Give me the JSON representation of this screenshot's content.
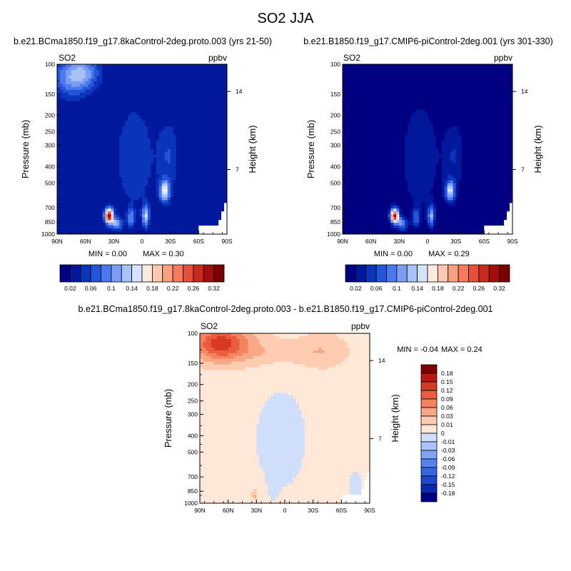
{
  "title": "SO2 JJA",
  "colors": {
    "abs_levels": [
      "#000080",
      "#00189c",
      "#0a35bb",
      "#2354d9",
      "#4a78ee",
      "#7b9df5",
      "#a8c2f8",
      "#d4e5fb",
      "#ffe9df",
      "#fdc8b1",
      "#f9a282",
      "#f47c5d",
      "#e5503b",
      "#c92a1e",
      "#a30e0b",
      "#7a0000"
    ],
    "diff_levels": [
      "#000080",
      "#0a29b0",
      "#1f45d4",
      "#3566e6",
      "#5483ef",
      "#7ea6f5",
      "#a9c4f8",
      "#cfdff9",
      "#ffe8d8",
      "#fdccb1",
      "#f9a886",
      "#f4845f",
      "#ea5d3e",
      "#d63a22",
      "#b31a10",
      "#7f0000"
    ],
    "missing": "#ffffff"
  },
  "chart_data": [
    {
      "type": "heatmap",
      "title": "b.e21.BCma1850.f19_g17.8kaControl-2deg.proto.003 (yrs 21-50)",
      "left_label": "SO2",
      "right_label": "ppbv",
      "ylabel": "Pressure (mb)",
      "ylabel_right": "Height (km)",
      "x_ticks": [
        "90N",
        "60N",
        "30N",
        "0",
        "30S",
        "60S",
        "90S"
      ],
      "y_ticks": [
        "100",
        "150",
        "200",
        "250",
        "300",
        "400",
        "500",
        "700",
        "850",
        "1000"
      ],
      "y_ticks_right": [
        "14",
        "7"
      ],
      "xlim": [
        90,
        -90
      ],
      "ylim_mb": [
        1000,
        100
      ],
      "stats": {
        "min_label": "MIN = ",
        "min": "0.00",
        "max_label": "MAX = ",
        "max": "0.30"
      },
      "colorbar": {
        "orientation": "horizontal",
        "labels": [
          "0.02",
          "0.06",
          "0.1",
          "0.14",
          "0.18",
          "0.22",
          "0.26",
          "0.32"
        ]
      },
      "field": {
        "background": 1,
        "blobs": [
          {
            "lat": 75,
            "p": 120,
            "lev": 4,
            "sx": 14,
            "sy": 0.18
          },
          {
            "lat": 60,
            "p": 110,
            "lev": 3,
            "sx": 12,
            "sy": 0.16
          },
          {
            "lat": 35,
            "p": 780,
            "lev": 14,
            "sx": 3.2,
            "sy": 0.07
          },
          {
            "lat": 27,
            "p": 870,
            "lev": 5,
            "sx": 4,
            "sy": 0.06
          },
          {
            "lat": 12,
            "p": 800,
            "lev": 4,
            "sx": 2.5,
            "sy": 0.08
          },
          {
            "lat": -4,
            "p": 780,
            "lev": 6,
            "sx": 2.5,
            "sy": 0.1
          },
          {
            "lat": -24,
            "p": 560,
            "lev": 7,
            "sx": 3.5,
            "sy": 0.1
          },
          {
            "lat": -28,
            "p": 350,
            "lev": 2,
            "sx": 8,
            "sy": 0.35
          },
          {
            "lat": 8,
            "p": 350,
            "lev": 2,
            "sx": 14,
            "sy": 0.5
          }
        ]
      }
    },
    {
      "type": "heatmap",
      "title": "b.e21.B1850.f19_g17.CMIP6-piControl-2deg.001 (yrs 301-330)",
      "left_label": "SO2",
      "right_label": "ppbv",
      "ylabel": "Pressure (mb)",
      "ylabel_right": "Height (km)",
      "x_ticks": [
        "90N",
        "60N",
        "30N",
        "0",
        "30S",
        "60S",
        "90S"
      ],
      "y_ticks": [
        "100",
        "150",
        "200",
        "250",
        "300",
        "400",
        "500",
        "700",
        "850",
        "1000"
      ],
      "y_ticks_right": [
        "14",
        "7"
      ],
      "xlim": [
        90,
        -90
      ],
      "ylim_mb": [
        1000,
        100
      ],
      "stats": {
        "min_label": "MIN = ",
        "min": "0.00",
        "max_label": "MAX = ",
        "max": "0.29"
      },
      "colorbar": {
        "orientation": "horizontal",
        "labels": [
          "0.02",
          "0.06",
          "0.1",
          "0.14",
          "0.18",
          "0.22",
          "0.26",
          "0.32"
        ]
      },
      "field": {
        "background": 0,
        "blobs": [
          {
            "lat": 35,
            "p": 780,
            "lev": 14,
            "sx": 3.2,
            "sy": 0.07
          },
          {
            "lat": 27,
            "p": 870,
            "lev": 5,
            "sx": 4,
            "sy": 0.06
          },
          {
            "lat": 12,
            "p": 800,
            "lev": 4,
            "sx": 2.5,
            "sy": 0.08
          },
          {
            "lat": -4,
            "p": 780,
            "lev": 6,
            "sx": 2.5,
            "sy": 0.1
          },
          {
            "lat": -24,
            "p": 560,
            "lev": 7,
            "sx": 3.5,
            "sy": 0.1
          },
          {
            "lat": -28,
            "p": 350,
            "lev": 2,
            "sx": 8,
            "sy": 0.35
          },
          {
            "lat": 8,
            "p": 350,
            "lev": 2,
            "sx": 14,
            "sy": 0.55
          }
        ]
      }
    },
    {
      "type": "heatmap",
      "title": "b.e21.BCma1850.f19_g17.8kaControl-2deg.proto.003 - b.e21.B1850.f19_g17.CMIP6-piControl-2deg.001",
      "left_label": "SO2",
      "right_label": "ppbv",
      "ylabel": "Pressure (mb)",
      "ylabel_right": "Height (km)",
      "x_ticks": [
        "90N",
        "60N",
        "30N",
        "0",
        "30S",
        "60S",
        "90S"
      ],
      "y_ticks": [
        "100",
        "150",
        "200",
        "250",
        "300",
        "400",
        "500",
        "700",
        "850",
        "1000"
      ],
      "y_ticks_right": [
        "14",
        "7"
      ],
      "xlim": [
        90,
        -90
      ],
      "ylim_mb": [
        1000,
        100
      ],
      "stats": {
        "min_label": "MIN = ",
        "min": "-0.04",
        "max_label": "MAX = ",
        "max": "0.24"
      },
      "colorbar": {
        "orientation": "vertical",
        "labels": [
          "0.18",
          "0.15",
          "0.12",
          "0.09",
          "0.06",
          "0.03",
          "0.01",
          "0",
          "-0.01",
          "-0.03",
          "-0.06",
          "-0.09",
          "-0.12",
          "-0.15",
          "-0.18"
        ]
      },
      "field": {
        "background": 8,
        "blobs": [
          {
            "lat": 70,
            "p": 115,
            "lev": 3,
            "sx": 18,
            "sy": 0.15
          },
          {
            "lat": 62,
            "p": 110,
            "lev": 2,
            "sx": 28,
            "sy": 0.22
          },
          {
            "lat": -40,
            "p": 125,
            "lev": 1,
            "sx": 18,
            "sy": 0.2
          },
          {
            "lat": 10,
            "p": 130,
            "lev": 1,
            "sx": 45,
            "sy": 0.12
          },
          {
            "lat": 32,
            "p": 900,
            "lev": 2,
            "sx": 2,
            "sy": 0.05
          }
        ],
        "negative": [
          {
            "lat": 4,
            "p": 420,
            "lev": 1,
            "sx": 22,
            "sy": 0.55
          },
          {
            "lat": -75,
            "p": 780,
            "lev": 1,
            "sx": 6,
            "sy": 0.15
          },
          {
            "lat": 12,
            "p": 750,
            "lev": 2,
            "sx": 3,
            "sy": 0.12
          }
        ]
      }
    }
  ]
}
